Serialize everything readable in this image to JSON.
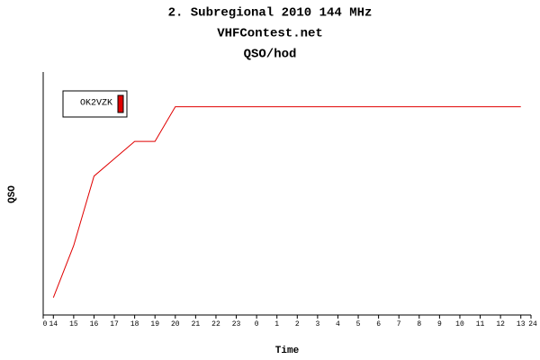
{
  "chart_data": {
    "type": "line",
    "title": "2. Subregional 2010 144 MHz",
    "subtitle": "VHFContest.net",
    "chart_label": "QSO/hod",
    "x_label": "Time",
    "y_label": "QSO",
    "x": [
      0.5,
      1.5,
      2.5,
      3.5,
      4.5,
      5.5,
      6.5,
      7.5,
      8.5,
      9.5,
      10.5,
      11.5,
      12.5,
      13.5,
      14.5,
      15.5,
      16.5,
      17.5,
      18.5,
      19.5,
      20.5,
      21.5,
      22.5,
      23.5
    ],
    "series": [
      {
        "name": "OK2VZK",
        "color": "#e00000",
        "values": [
          1,
          4,
          8,
          9,
          10,
          10,
          12,
          12,
          12,
          12,
          12,
          12,
          12,
          12,
          12,
          12,
          12,
          12,
          12,
          12,
          12,
          12,
          12,
          12
        ]
      }
    ],
    "xlim": [
      0,
      24
    ],
    "xticks": [
      0,
      {
        "value": 0.5,
        "label": "14"
      },
      {
        "value": 1.5,
        "label": "15"
      },
      {
        "value": 2.5,
        "label": "16"
      },
      {
        "value": 3.5,
        "label": "17"
      },
      {
        "value": 4.5,
        "label": "18"
      },
      {
        "value": 5.5,
        "label": "19"
      },
      {
        "value": 6.5,
        "label": "20"
      },
      {
        "value": 7.5,
        "label": "21"
      },
      {
        "value": 8.5,
        "label": "22"
      },
      {
        "value": 9.5,
        "label": "23"
      },
      {
        "value": 10.5,
        "label": "0"
      },
      {
        "value": 11.5,
        "label": "1"
      },
      {
        "value": 12.5,
        "label": "2"
      },
      {
        "value": 13.5,
        "label": "3"
      },
      {
        "value": 14.5,
        "label": "4"
      },
      {
        "value": 15.5,
        "label": "5"
      },
      {
        "value": 16.5,
        "label": "6"
      },
      {
        "value": 17.5,
        "label": "7"
      },
      {
        "value": 18.5,
        "label": "8"
      },
      {
        "value": 19.5,
        "label": "9"
      },
      {
        "value": 20.5,
        "label": "10"
      },
      {
        "value": 21.5,
        "label": "11"
      },
      {
        "value": 22.5,
        "label": "12"
      },
      {
        "value": 23.5,
        "label": "13"
      },
      24
    ],
    "ylim": [
      0,
      14
    ],
    "grid": false,
    "legend": "top-left"
  }
}
